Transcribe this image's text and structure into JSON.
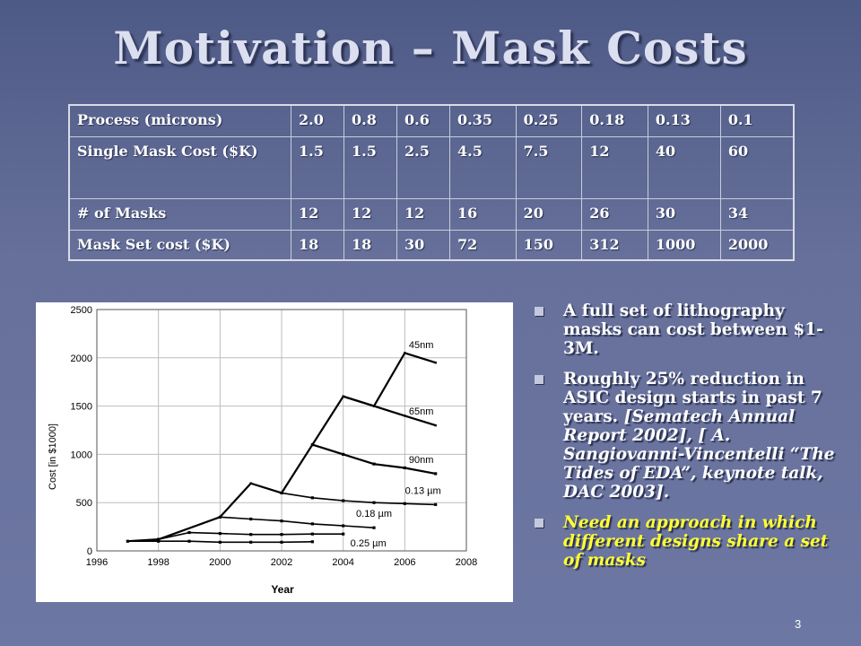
{
  "slide": {
    "title": "Motivation – Mask Costs",
    "slide_number": "3"
  },
  "table": {
    "rows": [
      {
        "label": "Process (microns)",
        "values": [
          "2.0",
          "0.8",
          "0.6",
          "0.35",
          "0.25",
          "0.18",
          "0.13",
          "0.1"
        ]
      },
      {
        "label": "Single Mask Cost ($K)",
        "values": [
          "1.5",
          "1.5",
          "2.5",
          "4.5",
          "7.5",
          "12",
          "40",
          "60"
        ]
      },
      {
        "label": "# of Masks",
        "values": [
          "12",
          "12",
          "12",
          "16",
          "20",
          "26",
          "30",
          "34"
        ]
      },
      {
        "label": "Mask Set cost ($K)",
        "values": [
          "18",
          "18",
          "30",
          "72",
          "150",
          "312",
          "1000",
          "2000"
        ]
      }
    ]
  },
  "bullets": {
    "b1": "A full set of lithography masks can cost between $1-3M.",
    "b2_main": "Roughly 25% reduction in ASIC design starts in past 7 years. ",
    "b2_cite": "[Sematech Annual Report 2002], [ A. Sangiovanni-Vincentelli “The Tides of EDA”, keynote talk, DAC 2003].",
    "b3": "Need an approach in which different designs share a set of masks"
  },
  "colors": {
    "background": "#5f6a96",
    "highlight_text": "#ffff33",
    "body_text": "#ffffff"
  },
  "chart_data": {
    "type": "line",
    "xlabel": "Year",
    "ylabel": "Cost [in $1000]",
    "xlim": [
      1996,
      2008
    ],
    "ylim": [
      0,
      2500
    ],
    "x_ticks": [
      1996,
      1998,
      2000,
      2002,
      2004,
      2006,
      2008
    ],
    "y_ticks": [
      0,
      500,
      1000,
      1500,
      2000,
      2500
    ],
    "grid": true,
    "series": [
      {
        "name": "45nm",
        "points": [
          [
            1997,
            100
          ],
          [
            1998,
            120
          ],
          [
            2000,
            350
          ],
          [
            2001,
            700
          ],
          [
            2002,
            600
          ],
          [
            2004,
            1600
          ],
          [
            2005,
            1500
          ],
          [
            2006,
            2050
          ],
          [
            2007,
            1950
          ]
        ]
      },
      {
        "name": "65nm",
        "points": [
          [
            2004,
            1600
          ],
          [
            2005,
            1500
          ],
          [
            2006,
            1400
          ],
          [
            2007,
            1300
          ]
        ]
      },
      {
        "name": "90nm",
        "points": [
          [
            2003,
            1100
          ],
          [
            2004,
            1000
          ],
          [
            2005,
            900
          ],
          [
            2006,
            860
          ],
          [
            2007,
            800
          ]
        ]
      },
      {
        "name": "0.13 µm",
        "points": [
          [
            2002,
            600
          ],
          [
            2003,
            550
          ],
          [
            2004,
            520
          ],
          [
            2005,
            500
          ],
          [
            2006,
            490
          ],
          [
            2007,
            480
          ]
        ]
      },
      {
        "name": "0.18 µm",
        "points": [
          [
            2000,
            350
          ],
          [
            2001,
            330
          ],
          [
            2002,
            310
          ],
          [
            2003,
            280
          ],
          [
            2004,
            260
          ],
          [
            2005,
            240
          ]
        ]
      },
      {
        "name": "0.25 µm",
        "points": [
          [
            1998,
            120
          ],
          [
            1999,
            190
          ],
          [
            2000,
            180
          ],
          [
            2001,
            170
          ],
          [
            2002,
            170
          ],
          [
            2003,
            175
          ],
          [
            2004,
            175
          ]
        ]
      },
      {
        "name": "",
        "points": [
          [
            1997,
            100
          ],
          [
            1998,
            100
          ],
          [
            1999,
            100
          ],
          [
            2000,
            90
          ],
          [
            2001,
            90
          ],
          [
            2002,
            90
          ],
          [
            2003,
            95
          ]
        ]
      }
    ]
  }
}
